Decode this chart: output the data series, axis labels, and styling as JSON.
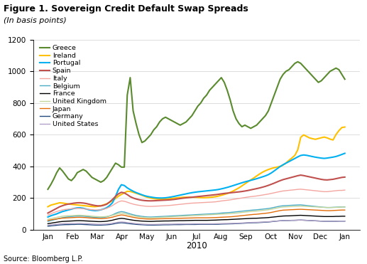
{
  "title": "Figure 1. Sovereign Credit Default Swap Spreads",
  "subtitle": "(In basis points)",
  "source": "Source: Bloomberg L.P.",
  "ylim": [
    0,
    1200
  ],
  "yticks": [
    0,
    200,
    400,
    600,
    800,
    1000,
    1200
  ],
  "xlabel": "2010",
  "month_labels": [
    "Jan",
    "Feb",
    "Mar",
    "Apr",
    "May",
    "Jun",
    "Jul",
    "Aug",
    "Sep",
    "Oct",
    "Nov",
    "Dec",
    "Jan"
  ],
  "series": {
    "Greece": {
      "color": "#5a8a2e",
      "linewidth": 1.5,
      "data": [
        255,
        285,
        320,
        360,
        390,
        370,
        345,
        320,
        310,
        330,
        360,
        370,
        380,
        370,
        350,
        330,
        320,
        310,
        300,
        310,
        330,
        360,
        390,
        420,
        410,
        395,
        395,
        850,
        960,
        750,
        670,
        600,
        550,
        560,
        580,
        600,
        630,
        650,
        680,
        700,
        710,
        700,
        690,
        680,
        670,
        660,
        670,
        680,
        700,
        720,
        750,
        780,
        800,
        830,
        850,
        880,
        900,
        920,
        940,
        960,
        930,
        880,
        820,
        750,
        700,
        670,
        650,
        660,
        650,
        640,
        650,
        660,
        680,
        700,
        720,
        750,
        800,
        850,
        900,
        950,
        980,
        1000,
        1010,
        1030,
        1050,
        1060,
        1050,
        1030,
        1010,
        990,
        970,
        950,
        930,
        940,
        960,
        980,
        1000,
        1010,
        1020,
        1010,
        980,
        950
      ]
    },
    "Ireland": {
      "color": "#ffc000",
      "linewidth": 1.5,
      "data": [
        145,
        155,
        160,
        165,
        170,
        168,
        165,
        162,
        160,
        158,
        156,
        154,
        152,
        150,
        148,
        146,
        145,
        148,
        152,
        158,
        165,
        175,
        185,
        200,
        215,
        225,
        235,
        245,
        240,
        235,
        228,
        222,
        215,
        208,
        202,
        198,
        195,
        193,
        192,
        192,
        193,
        195,
        198,
        200,
        202,
        204,
        205,
        205,
        205,
        205,
        204,
        203,
        202,
        202,
        203,
        205,
        207,
        210,
        215,
        220,
        226,
        232,
        240,
        250,
        260,
        272,
        285,
        298,
        310,
        322,
        335,
        348,
        360,
        370,
        378,
        385,
        390,
        395,
        398,
        405,
        418,
        435,
        450,
        465,
        490,
        580,
        600,
        590,
        580,
        575,
        570,
        575,
        580,
        585,
        580,
        572,
        565,
        600,
        625,
        645,
        648
      ]
    },
    "Portugal": {
      "color": "#00b0f0",
      "linewidth": 1.5,
      "data": [
        80,
        88,
        94,
        100,
        108,
        115,
        120,
        125,
        130,
        135,
        138,
        138,
        135,
        130,
        125,
        122,
        120,
        122,
        126,
        132,
        140,
        155,
        175,
        220,
        265,
        290,
        275,
        260,
        250,
        240,
        232,
        225,
        218,
        212,
        208,
        205,
        202,
        200,
        200,
        200,
        202,
        205,
        208,
        212,
        216,
        220,
        224,
        228,
        232,
        235,
        238,
        240,
        242,
        244,
        246,
        248,
        250,
        252,
        256,
        260,
        265,
        270,
        276,
        282,
        288,
        294,
        300,
        305,
        310,
        315,
        320,
        326,
        332,
        338,
        345,
        355,
        368,
        382,
        396,
        408,
        418,
        428,
        438,
        448,
        458,
        468,
        472,
        470,
        466,
        462,
        458,
        455,
        452,
        450,
        452,
        455,
        458,
        462,
        468,
        475,
        482
      ]
    },
    "Spain": {
      "color": "#c0504d",
      "linewidth": 1.5,
      "data": [
        105,
        115,
        125,
        135,
        145,
        152,
        158,
        162,
        165,
        168,
        170,
        170,
        168,
        165,
        160,
        156,
        152,
        150,
        150,
        155,
        162,
        178,
        195,
        215,
        230,
        238,
        230,
        218,
        205,
        198,
        192,
        188,
        185,
        183,
        182,
        182,
        183,
        184,
        185,
        186,
        187,
        188,
        190,
        192,
        195,
        198,
        200,
        202,
        204,
        206,
        208,
        210,
        212,
        214,
        216,
        218,
        220,
        222,
        225,
        228,
        230,
        232,
        234,
        236,
        238,
        240,
        243,
        246,
        250,
        254,
        258,
        262,
        267,
        272,
        278,
        285,
        292,
        300,
        308,
        315,
        320,
        325,
        330,
        335,
        340,
        345,
        342,
        338,
        334,
        330,
        326,
        322,
        318,
        315,
        314,
        316,
        318,
        322,
        326,
        330,
        332
      ]
    },
    "Italy": {
      "color": "#f4a6a0",
      "linewidth": 1.0,
      "data": [
        92,
        100,
        108,
        115,
        120,
        125,
        128,
        130,
        132,
        134,
        135,
        134,
        132,
        130,
        128,
        126,
        124,
        124,
        126,
        130,
        136,
        145,
        155,
        168,
        178,
        183,
        178,
        172,
        165,
        160,
        156,
        153,
        150,
        148,
        147,
        147,
        148,
        149,
        150,
        151,
        152,
        153,
        155,
        157,
        159,
        161,
        163,
        165,
        167,
        168,
        169,
        170,
        171,
        172,
        173,
        174,
        175,
        177,
        180,
        183,
        185,
        187,
        190,
        193,
        196,
        199,
        202,
        205,
        208,
        210,
        212,
        215,
        218,
        221,
        224,
        228,
        232,
        236,
        240,
        244,
        246,
        248,
        250,
        252,
        254,
        256,
        254,
        252,
        250,
        248,
        246,
        244,
        242,
        240,
        240,
        242,
        244,
        246,
        248,
        248,
        250
      ]
    },
    "Belgium": {
      "color": "#4bacc6",
      "linewidth": 1.0,
      "data": [
        52,
        57,
        62,
        67,
        72,
        76,
        79,
        81,
        83,
        85,
        86,
        86,
        85,
        83,
        81,
        79,
        77,
        76,
        76,
        78,
        82,
        88,
        95,
        105,
        112,
        115,
        110,
        104,
        98,
        93,
        89,
        86,
        83,
        81,
        80,
        80,
        81,
        82,
        83,
        84,
        85,
        86,
        87,
        88,
        89,
        90,
        91,
        92,
        93,
        94,
        95,
        96,
        97,
        98,
        99,
        100,
        101,
        102,
        104,
        106,
        107,
        108,
        110,
        112,
        114,
        116,
        118,
        120,
        122,
        124,
        125,
        127,
        129,
        131,
        133,
        136,
        140,
        144,
        148,
        151,
        152,
        153,
        154,
        155,
        156,
        157,
        155,
        153,
        151,
        149,
        147,
        145,
        143,
        141,
        140,
        140,
        141,
        142,
        143,
        144,
        144
      ]
    },
    "France": {
      "color": "#000000",
      "linewidth": 1.0,
      "data": [
        38,
        41,
        44,
        47,
        50,
        52,
        53,
        54,
        55,
        56,
        57,
        57,
        56,
        55,
        54,
        53,
        52,
        51,
        51,
        52,
        54,
        57,
        61,
        66,
        70,
        72,
        69,
        65,
        62,
        59,
        57,
        55,
        54,
        53,
        52,
        52,
        53,
        54,
        54,
        55,
        55,
        55,
        56,
        56,
        57,
        57,
        57,
        58,
        58,
        59,
        59,
        59,
        59,
        59,
        59,
        60,
        60,
        61,
        62,
        63,
        63,
        64,
        65,
        66,
        67,
        68,
        69,
        70,
        71,
        72,
        72,
        73,
        74,
        75,
        76,
        78,
        80,
        82,
        84,
        86,
        87,
        87,
        88,
        89,
        90,
        91,
        90,
        89,
        88,
        87,
        86,
        85,
        84,
        83,
        83,
        83,
        83,
        84,
        84,
        85,
        85
      ]
    },
    "United Kingdom": {
      "color": "#c3d69b",
      "linewidth": 1.0,
      "data": [
        65,
        70,
        74,
        78,
        82,
        85,
        87,
        88,
        89,
        90,
        91,
        91,
        90,
        89,
        87,
        85,
        83,
        82,
        81,
        82,
        84,
        87,
        92,
        98,
        103,
        106,
        101,
        96,
        91,
        87,
        83,
        80,
        78,
        76,
        75,
        75,
        76,
        77,
        78,
        79,
        80,
        81,
        82,
        83,
        84,
        85,
        86,
        87,
        88,
        89,
        90,
        91,
        92,
        93,
        94,
        95,
        96,
        97,
        98,
        99,
        100,
        101,
        102,
        104,
        106,
        108,
        110,
        112,
        114,
        116,
        117,
        119,
        121,
        123,
        125,
        128,
        132,
        136,
        140,
        143,
        144,
        145,
        146,
        147,
        148,
        149,
        148,
        147,
        146,
        145,
        144,
        143,
        142,
        141,
        140,
        140,
        140,
        141,
        142,
        143,
        143
      ]
    },
    "Japan": {
      "color": "#e36c09",
      "linewidth": 1.0,
      "data": [
        58,
        62,
        65,
        68,
        71,
        73,
        74,
        75,
        76,
        77,
        78,
        78,
        77,
        76,
        74,
        73,
        72,
        71,
        70,
        71,
        73,
        76,
        80,
        86,
        91,
        94,
        90,
        85,
        81,
        77,
        74,
        71,
        69,
        68,
        67,
        67,
        68,
        68,
        69,
        69,
        70,
        70,
        71,
        71,
        72,
        72,
        73,
        73,
        74,
        74,
        75,
        75,
        75,
        75,
        75,
        76,
        76,
        77,
        78,
        79,
        80,
        81,
        82,
        84,
        86,
        88,
        90,
        92,
        94,
        96,
        97,
        99,
        101,
        103,
        105,
        108,
        112,
        116,
        120,
        123,
        124,
        125,
        126,
        127,
        128,
        129,
        128,
        127,
        126,
        125,
        124,
        123,
        122,
        121,
        120,
        120,
        121,
        122,
        123,
        124,
        124
      ]
    },
    "Germany": {
      "color": "#1f497d",
      "linewidth": 1.0,
      "data": [
        22,
        24,
        26,
        28,
        30,
        31,
        32,
        32,
        33,
        33,
        34,
        34,
        33,
        32,
        31,
        30,
        29,
        29,
        29,
        30,
        31,
        33,
        36,
        40,
        43,
        44,
        42,
        39,
        37,
        35,
        33,
        32,
        31,
        30,
        29,
        29,
        29,
        30,
        30,
        31,
        31,
        31,
        32,
        32,
        32,
        32,
        33,
        33,
        33,
        33,
        33,
        34,
        34,
        34,
        34,
        34,
        34,
        34,
        35,
        36,
        36,
        37,
        37,
        38,
        39,
        40,
        41,
        42,
        43,
        44,
        44,
        45,
        46,
        47,
        48,
        50,
        52,
        54,
        56,
        57,
        58,
        58,
        59,
        59,
        60,
        61,
        60,
        59,
        58,
        57,
        56,
        55,
        54,
        53,
        53,
        53,
        53,
        53,
        54,
        54,
        54
      ]
    },
    "United States": {
      "color": "#b2a2c7",
      "linewidth": 1.0,
      "data": [
        28,
        30,
        32,
        34,
        36,
        37,
        38,
        38,
        39,
        39,
        40,
        40,
        39,
        38,
        37,
        36,
        35,
        34,
        34,
        35,
        36,
        38,
        41,
        45,
        48,
        49,
        47,
        44,
        42,
        40,
        38,
        36,
        35,
        34,
        33,
        33,
        33,
        34,
        34,
        35,
        35,
        35,
        35,
        36,
        36,
        36,
        36,
        36,
        36,
        37,
        37,
        37,
        37,
        37,
        37,
        37,
        37,
        38,
        38,
        39,
        39,
        39,
        40,
        40,
        41,
        42,
        43,
        44,
        45,
        46,
        46,
        47,
        48,
        49,
        50,
        51,
        53,
        54,
        56,
        57,
        58,
        58,
        59,
        59,
        60,
        61,
        60,
        59,
        58,
        57,
        56,
        55,
        54,
        53,
        53,
        53,
        53,
        53,
        54,
        54,
        54
      ]
    }
  }
}
